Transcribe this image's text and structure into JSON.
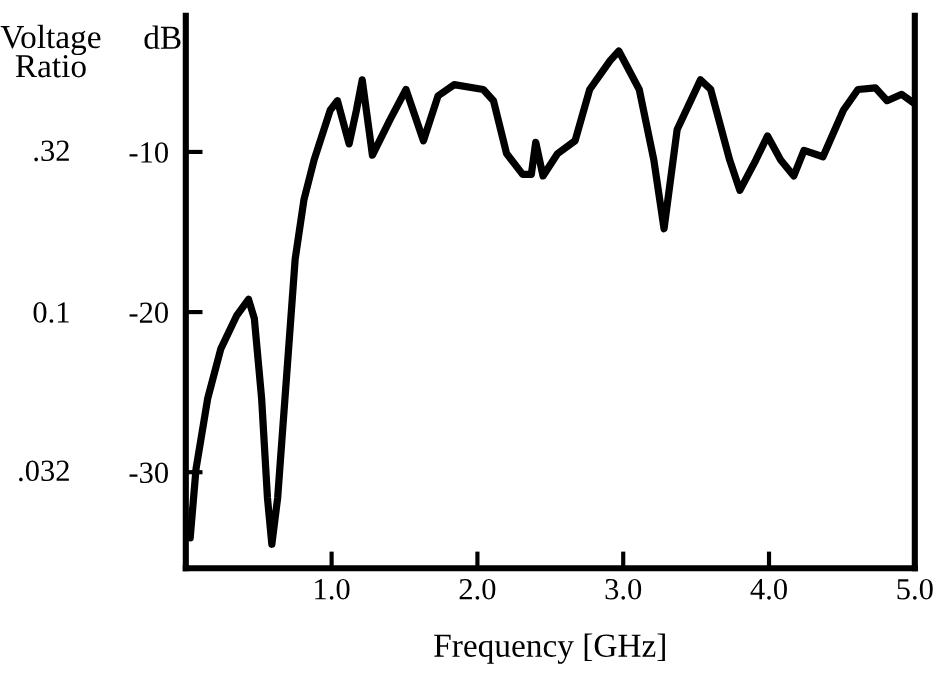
{
  "chart_data": {
    "type": "line",
    "xlabel": "Frequency [GHz]",
    "ylabel": "dB",
    "y2label": "Voltage Ratio",
    "xlim": [
      0,
      5
    ],
    "xticks": [
      {
        "value": 1,
        "label": "1.0"
      },
      {
        "value": 2,
        "label": "2.0"
      },
      {
        "value": 3,
        "label": "3.0"
      },
      {
        "value": 4,
        "label": "4.0"
      },
      {
        "value": 5,
        "label": "5.0"
      }
    ],
    "ylim": [
      -36,
      -1.5
    ],
    "yticks": [
      -10,
      -20,
      -30
    ],
    "log": "y2",
    "y2lim": [
      0.0158,
      0.841
    ],
    "y2ticks": [
      {
        "value": 0.32,
        "label": ".32"
      },
      0.1,
      {
        "value": 0.032,
        "label": ".032"
      }
    ],
    "grid": false,
    "legend": false,
    "marker": "none",
    "line_style": "solid",
    "series": [
      {
        "color": "#000000",
        "x": [
          0.03,
          0.07,
          0.15,
          0.24,
          0.35,
          0.43,
          0.47,
          0.52,
          0.56,
          0.59,
          0.63,
          0.68,
          0.75,
          0.81,
          0.88,
          0.99,
          1.04,
          1.12,
          1.17,
          1.21,
          1.28,
          1.4,
          1.51,
          1.63,
          1.73,
          1.84,
          2.04,
          2.11,
          2.2,
          2.31,
          2.37,
          2.4,
          2.45,
          2.55,
          2.67,
          2.77,
          2.91,
          2.97,
          3.11,
          3.21,
          3.28,
          3.37,
          3.53,
          3.6,
          3.73,
          3.8,
          3.91,
          3.99,
          4.08,
          4.17,
          4.24,
          4.37,
          4.51,
          4.61,
          4.73,
          4.81,
          4.91,
          5.0
        ],
        "values": [
          -34.1,
          -29.8,
          -25.4,
          -22.3,
          -20.2,
          -19.2,
          -20.4,
          -25.4,
          -31.6,
          -34.5,
          -31.6,
          -25.4,
          -16.7,
          -13.0,
          -10.5,
          -7.4,
          -6.8,
          -9.5,
          -7.4,
          -5.5,
          -10.2,
          -8.0,
          -6.1,
          -9.3,
          -6.5,
          -5.8,
          -6.1,
          -6.8,
          -10.1,
          -11.4,
          -11.4,
          -9.4,
          -11.5,
          -10.1,
          -9.3,
          -6.1,
          -4.3,
          -3.7,
          -6.1,
          -10.5,
          -14.8,
          -8.6,
          -5.5,
          -6.1,
          -10.5,
          -12.4,
          -10.5,
          -9.0,
          -10.5,
          -11.5,
          -9.9,
          -10.3,
          -7.4,
          -6.1,
          -6.0,
          -6.8,
          -6.4,
          -7.0
        ]
      }
    ]
  }
}
